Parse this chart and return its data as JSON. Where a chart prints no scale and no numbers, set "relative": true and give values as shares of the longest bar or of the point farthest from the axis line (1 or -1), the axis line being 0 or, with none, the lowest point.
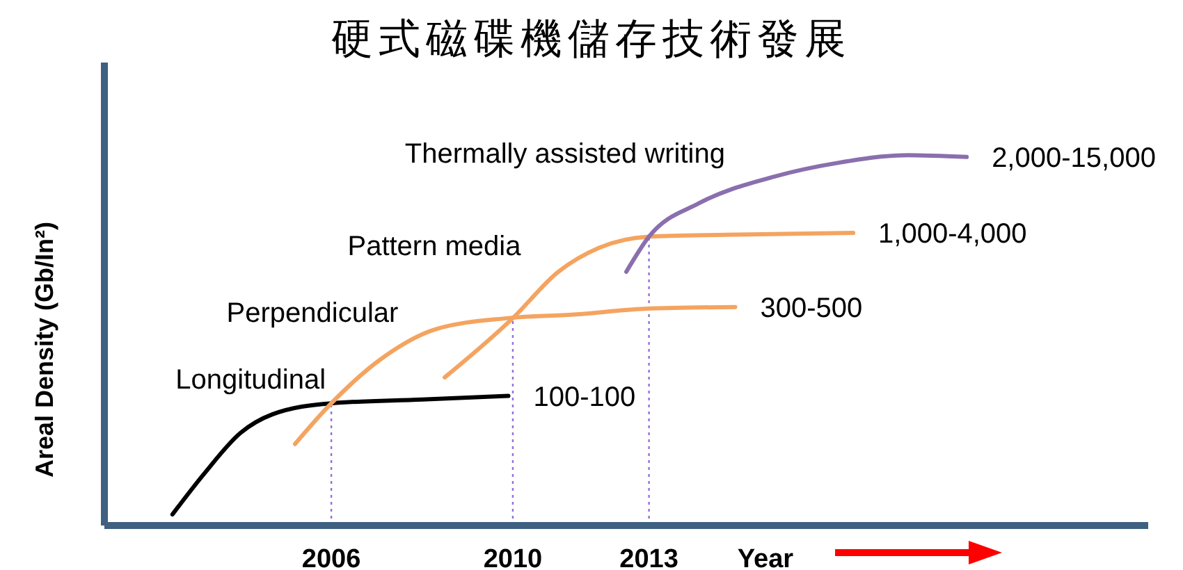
{
  "chart_data": {
    "type": "line",
    "title": "硬式磁碟機儲存技術發展",
    "xlabel": "Year",
    "ylabel": "Areal Density (Gb/In²)",
    "relative": true,
    "xlim": [
      2001,
      2024
    ],
    "xticks": [
      2006,
      2010,
      2013
    ],
    "grid": false,
    "marker": "none",
    "line_style": "solid",
    "series": [
      {
        "name": "Longitudinal",
        "color": "#000000",
        "x": [
          2002.5,
          2003.2,
          2004.0,
          2004.7,
          2006.0,
          2008.0,
          2009.9
        ],
        "values": [
          0.03,
          0.14,
          0.25,
          0.3,
          0.33,
          0.34,
          0.35
        ]
      },
      {
        "name": "Perpendicular",
        "color": "#f4a460",
        "x": [
          2005.2,
          2006.0,
          2007.1,
          2008.3,
          2009.9,
          2011.4,
          2012.9,
          2014.9
        ],
        "values": [
          0.22,
          0.33,
          0.45,
          0.53,
          0.56,
          0.57,
          0.585,
          0.59
        ]
      },
      {
        "name": "Pattern media",
        "color": "#f4a460",
        "x": [
          2008.5,
          2010.0,
          2011.0,
          2011.9,
          2013.0,
          2014.7,
          2017.5
        ],
        "values": [
          0.4,
          0.56,
          0.685,
          0.75,
          0.78,
          0.785,
          0.79
        ]
      },
      {
        "name": "Thermally assisted writing",
        "color": "#8a6fae",
        "x": [
          2012.5,
          2013.0,
          2014.1,
          2015.7,
          2017.2,
          2018.7,
          2020.0
        ],
        "values": [
          0.685,
          0.78,
          0.87,
          0.94,
          0.98,
          1.0,
          0.995
        ]
      }
    ],
    "annotations": [
      {
        "text": "100-100",
        "x": 2009.9,
        "y": 0.35
      },
      {
        "text": "300-500",
        "x": 2014.9,
        "y": 0.59
      },
      {
        "text": "1,000-4,000",
        "x": 2017.5,
        "y": 0.79
      },
      {
        "text": "2,000-15,000",
        "x": 2020.0,
        "y": 0.995
      }
    ],
    "ref_lines": [
      {
        "axis": "x",
        "value": 2006,
        "color": "#9370db",
        "line_style": "dotted"
      },
      {
        "axis": "x",
        "value": 2010,
        "color": "#9370db",
        "line_style": "dotted"
      },
      {
        "axis": "x",
        "value": 2013,
        "color": "#9370db",
        "line_style": "dotted"
      }
    ]
  }
}
